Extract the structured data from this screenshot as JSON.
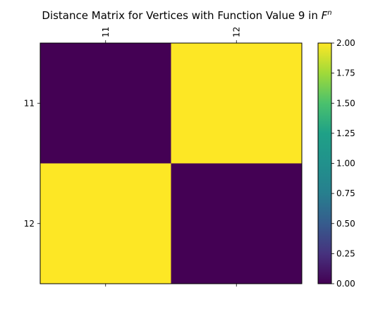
{
  "chart_data": {
    "type": "heatmap",
    "title": "Distance Matrix for Vertices with Function Value 9 in ",
    "title_math_base": "F",
    "title_math_sup": "n",
    "row_labels": [
      "11",
      "12"
    ],
    "col_labels": [
      "11",
      "12"
    ],
    "values": [
      [
        0,
        2
      ],
      [
        2,
        0
      ]
    ],
    "colormap": "viridis",
    "colormap_min_color": "#440154",
    "colormap_max_color": "#fde725",
    "vmin": 0,
    "vmax": 2,
    "colorbar": {
      "ticks": [
        0,
        0.25,
        0.5,
        0.75,
        1,
        1.25,
        1.5,
        1.75,
        2
      ],
      "tick_labels": [
        "0.00",
        "0.25",
        "0.50",
        "0.75",
        "1.00",
        "1.25",
        "1.50",
        "1.75",
        "2.00"
      ]
    }
  }
}
